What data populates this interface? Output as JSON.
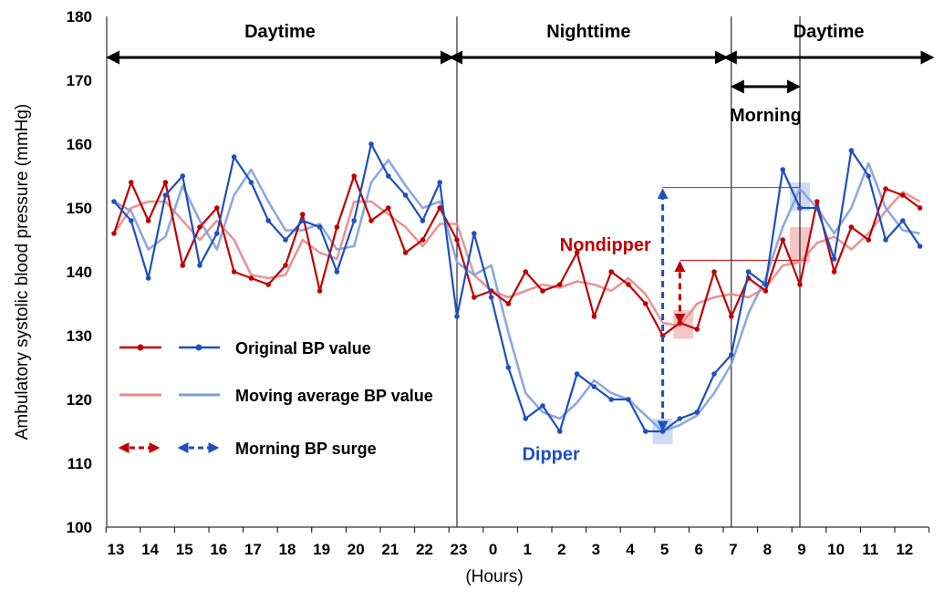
{
  "chart_data": {
    "type": "line",
    "title": "",
    "ylabel": "Ambulatory systolic blood pressure (mmHg)",
    "xlabel": "(Hours)",
    "ylim": [
      100,
      180
    ],
    "yticks": [
      100,
      110,
      120,
      130,
      140,
      150,
      160,
      170,
      180
    ],
    "xlim": [
      0,
      24
    ],
    "x_tick_positions": [
      0,
      1,
      2,
      3,
      4,
      5,
      6,
      7,
      8,
      9,
      10,
      11,
      12,
      13,
      14,
      15,
      16,
      17,
      18,
      19,
      20,
      21,
      22,
      23,
      24
    ],
    "x_tick_labels": [
      "13",
      "14",
      "15",
      "16",
      "17",
      "18",
      "19",
      "20",
      "21",
      "22",
      "23",
      "0",
      "1",
      "2",
      "3",
      "4",
      "5",
      "6",
      "7",
      "8",
      "9",
      "10",
      "11",
      "12",
      ""
    ],
    "grid": false,
    "periods": [
      {
        "label": "Daytime",
        "start": 0,
        "end": 10
      },
      {
        "label": "Nighttime",
        "start": 10,
        "end": 18
      },
      {
        "label": "Daytime",
        "start": 18,
        "end": 24
      }
    ],
    "morning": {
      "label": "Morning",
      "start": 18,
      "end": 20
    },
    "dividers": [
      10,
      18,
      20
    ],
    "annotations": [
      {
        "text": "Nondipper",
        "x": 13.0,
        "y": 143.3,
        "color": "#c00000"
      },
      {
        "text": "Dipper",
        "x": 11.9,
        "y": 110.5,
        "color": "#1f4fbf"
      }
    ],
    "legend": {
      "position": "left",
      "entries": [
        {
          "label": "Original  BP value",
          "style": "original"
        },
        {
          "label": "Moving average BP value",
          "style": "moving"
        },
        {
          "label": "Morning  BP surge",
          "style": "surge"
        }
      ]
    },
    "series": [
      {
        "role": "nondipper-original",
        "color": "#c00000",
        "markers": true,
        "x": [
          0,
          0.5,
          1,
          1.5,
          2,
          2.5,
          3,
          3.5,
          4,
          4.5,
          5,
          5.5,
          6,
          6.5,
          7,
          7.5,
          8,
          8.5,
          9,
          9.5,
          10,
          10.5,
          11,
          11.5,
          12,
          12.5,
          13,
          13.5,
          14,
          14.5,
          15,
          15.5,
          16,
          16.5,
          17,
          17.5,
          18,
          18.5,
          19,
          19.5,
          20,
          20.5,
          21,
          21.5,
          22,
          22.5,
          23,
          23.5
        ],
        "values": [
          146,
          154,
          148,
          154,
          141,
          147,
          150,
          140,
          139,
          138,
          141,
          149,
          137,
          147,
          155,
          148,
          150,
          143,
          145,
          150,
          145,
          136,
          137,
          135,
          140,
          137,
          138,
          143,
          133,
          140,
          138,
          135,
          130,
          132,
          131,
          140,
          133,
          139,
          137,
          145,
          138,
          151,
          140,
          147,
          145,
          153,
          152,
          150
        ]
      },
      {
        "role": "dipper-original",
        "color": "#1f4fbf",
        "markers": true,
        "x": [
          0,
          0.5,
          1,
          1.5,
          2,
          2.5,
          3,
          3.5,
          4,
          4.5,
          5,
          5.5,
          6,
          6.5,
          7,
          7.5,
          8,
          8.5,
          9,
          9.5,
          10,
          10.5,
          11,
          11.5,
          12,
          12.5,
          13,
          13.5,
          14,
          14.5,
          15,
          15.5,
          16,
          16.5,
          17,
          17.5,
          18,
          18.5,
          19,
          19.5,
          20,
          20.5,
          21,
          21.5,
          22,
          22.5,
          23,
          23.5
        ],
        "values": [
          151,
          148,
          139,
          152,
          155,
          141,
          146,
          158,
          154,
          148,
          145,
          148,
          147,
          140,
          148,
          160,
          155,
          152,
          148,
          154,
          133,
          146,
          136,
          125,
          117,
          119,
          115,
          124,
          122,
          120,
          120,
          115,
          115,
          117,
          118,
          124,
          127,
          140,
          138,
          156,
          150,
          150,
          142,
          159,
          155,
          145,
          148,
          144
        ]
      },
      {
        "role": "nondipper-moving-average",
        "color": "#e88a8a",
        "markers": false,
        "x": [
          0,
          0.5,
          1,
          1.5,
          2,
          2.5,
          3,
          3.5,
          4,
          4.5,
          5,
          5.5,
          6,
          6.5,
          7,
          7.5,
          8,
          8.5,
          9,
          9.5,
          10,
          10.5,
          11,
          11.5,
          12,
          12.5,
          13,
          13.5,
          14,
          14.5,
          15,
          15.5,
          16,
          16.5,
          17,
          17.5,
          18,
          18.5,
          19,
          19.5,
          20,
          20.5,
          21,
          21.5,
          22,
          22.5,
          23,
          23.5
        ],
        "values": [
          146,
          150,
          151,
          151,
          148,
          145,
          148,
          145,
          139.5,
          139,
          139.5,
          145,
          143,
          142,
          151,
          151,
          149,
          147,
          144,
          147.5,
          147.5,
          139.5,
          137,
          136,
          137,
          138,
          137.5,
          138.5,
          138,
          137,
          139,
          136.5,
          132,
          131.5,
          135,
          136,
          136.5,
          136,
          137.5,
          141,
          141.5,
          144.5,
          145.5,
          143.5,
          146,
          149.5,
          152.5,
          151
        ]
      },
      {
        "role": "dipper-moving-average",
        "color": "#7f9fe0",
        "markers": false,
        "x": [
          0,
          0.5,
          1,
          1.5,
          2,
          2.5,
          3,
          3.5,
          4,
          4.5,
          5,
          5.5,
          6,
          6.5,
          7,
          7.5,
          8,
          8.5,
          9,
          9.5,
          10,
          10.5,
          11,
          11.5,
          12,
          12.5,
          13,
          13.5,
          14,
          14.5,
          15,
          15.5,
          16,
          16.5,
          17,
          17.5,
          18,
          18.5,
          19,
          19.5,
          20,
          20.5,
          21,
          21.5,
          22,
          22.5,
          23,
          23.5
        ],
        "values": [
          151,
          149.5,
          143.5,
          145.5,
          153.5,
          148,
          143.5,
          152,
          156,
          151,
          146.5,
          146.5,
          147.5,
          143.5,
          144,
          154,
          157.5,
          153.5,
          150,
          151,
          141.5,
          139.5,
          141,
          130.5,
          121,
          118,
          117,
          119.5,
          123,
          121,
          120,
          117.5,
          115,
          116,
          117.5,
          121,
          125.5,
          133.5,
          139,
          147,
          153,
          150,
          146,
          150,
          157,
          150,
          146.5,
          146
        ]
      }
    ],
    "surges": [
      {
        "role": "dipper-surge",
        "color": "#1f4fbf",
        "x": 16,
        "from": 115,
        "to": 153.2
      },
      {
        "role": "nondipper-surge",
        "color": "#c00000",
        "x": 16.5,
        "from": 131.8,
        "to": 141.8
      }
    ],
    "reference_lines": [
      {
        "color": "#1f4fbf",
        "y": 153.2,
        "x_from": 16,
        "x_to": 20
      },
      {
        "color": "#c00000",
        "y": 141.8,
        "x_from": 16.5,
        "x_to": 20.2
      }
    ],
    "highlights": [
      {
        "color": "#c6d5f5",
        "x": 16,
        "y_low": 113,
        "y_high": 117
      },
      {
        "color": "#f2bcbc",
        "x": 16.6,
        "y_low": 129.5,
        "y_high": 134
      },
      {
        "color": "#c6d5f5",
        "x": 20,
        "y_low": 149.5,
        "y_high": 154
      },
      {
        "color": "#f2bcbc",
        "x": 20,
        "y_low": 141.5,
        "y_high": 147
      }
    ]
  }
}
